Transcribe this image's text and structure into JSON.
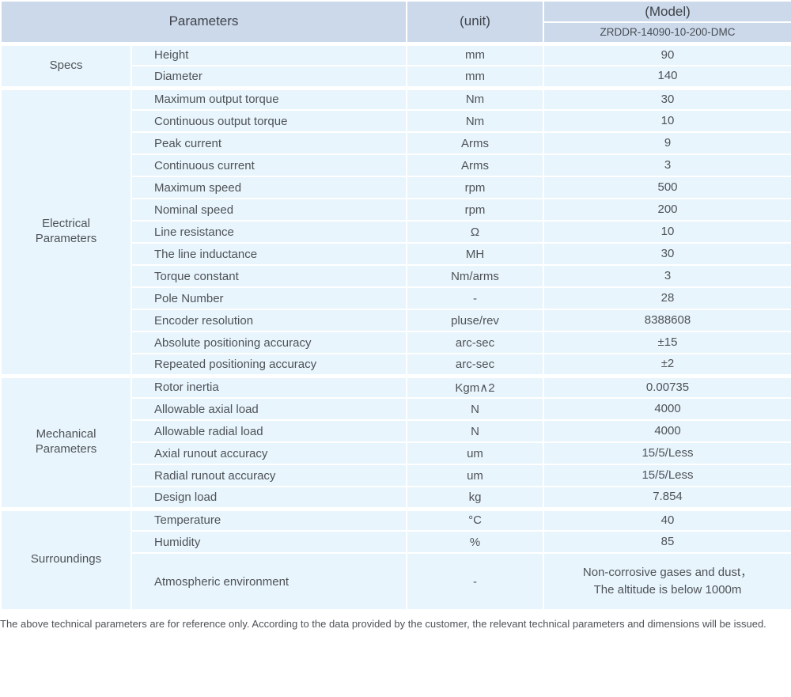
{
  "table": {
    "header": {
      "parameters_label": "Parameters",
      "unit_label": "(unit)",
      "model_label": "(Model)",
      "model_value": "ZRDDR-14090-10-200-DMC"
    },
    "sections": [
      {
        "category": "Specs",
        "rows": [
          {
            "name": "Height",
            "unit": "mm",
            "value": "90"
          },
          {
            "name": "Diameter",
            "unit": "mm",
            "value": "140"
          }
        ]
      },
      {
        "category": "Electrical Parameters",
        "rows": [
          {
            "name": "Maximum output torque",
            "unit": "Nm",
            "value": "30"
          },
          {
            "name": "Continuous output torque",
            "unit": "Nm",
            "value": "10"
          },
          {
            "name": "Peak current",
            "unit": "Arms",
            "value": "9"
          },
          {
            "name": "Continuous current",
            "unit": "Arms",
            "value": "3"
          },
          {
            "name": "Maximum speed",
            "unit": "rpm",
            "value": "500"
          },
          {
            "name": "Nominal speed",
            "unit": "rpm",
            "value": "200"
          },
          {
            "name": "Line resistance",
            "unit": "Ω",
            "value": "10"
          },
          {
            "name": "The line inductance",
            "unit": "MH",
            "value": "30"
          },
          {
            "name": "Torque constant",
            "unit": "Nm/arms",
            "value": "3"
          },
          {
            "name": "Pole Number",
            "unit": "-",
            "value": "28"
          },
          {
            "name": "Encoder resolution",
            "unit": "pluse/rev",
            "value": "8388608"
          },
          {
            "name": "Absolute positioning accuracy",
            "unit": "arc-sec",
            "value": "±15"
          },
          {
            "name": "Repeated positioning accuracy",
            "unit": "arc-sec",
            "value": "±2"
          }
        ]
      },
      {
        "category": "Mechanical Parameters",
        "rows": [
          {
            "name": "Rotor inertia",
            "unit": "Kgm∧2",
            "value": "0.00735"
          },
          {
            "name": "Allowable axial load",
            "unit": "N",
            "value": "4000"
          },
          {
            "name": "Allowable radial load",
            "unit": "N",
            "value": "4000"
          },
          {
            "name": "Axial runout accuracy",
            "unit": "um",
            "value": "15/5/Less"
          },
          {
            "name": "Radial runout accuracy",
            "unit": "um",
            "value": "15/5/Less"
          },
          {
            "name": "Design load",
            "unit": "kg",
            "value": "7.854"
          }
        ]
      },
      {
        "category": "Surroundings",
        "rows": [
          {
            "name": "Temperature",
            "unit": "°C",
            "value": "40"
          },
          {
            "name": "Humidity",
            "unit": "%",
            "value": "85"
          },
          {
            "name": "Atmospheric environment",
            "unit": "-",
            "value": "Non-corrosive gases and dust，\nThe altitude is below 1000m"
          }
        ]
      }
    ]
  },
  "footer": {
    "note": "The above technical parameters are for reference only. According to the data provided by the customer, the relevant technical parameters and dimensions will be issued."
  },
  "colors": {
    "header_bg": "#ccd9ea",
    "cell_bg": "#e8f5fc",
    "divider": "#ffffff",
    "text": "#4e5257"
  }
}
